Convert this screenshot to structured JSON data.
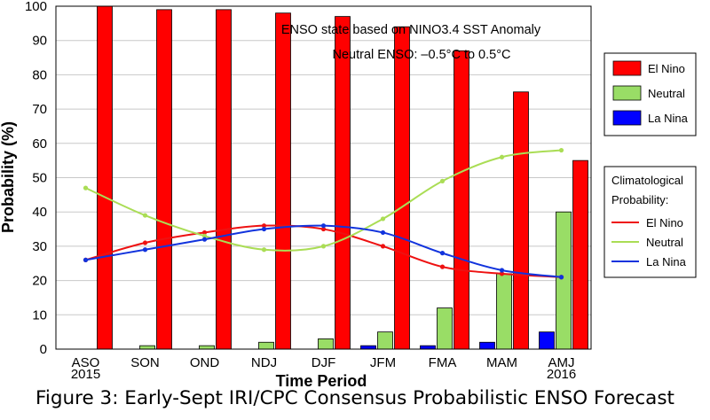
{
  "caption": "Figure 3: Early-Sept IRI/CPC Consensus Probabilistic ENSO Forecast",
  "chart_data": {
    "type": "bar",
    "categories": [
      "ASO",
      "SON",
      "OND",
      "NDJ",
      "DJF",
      "JFM",
      "FMA",
      "MAM",
      "AMJ"
    ],
    "year_labels": [
      {
        "category": "ASO",
        "text": "2015"
      },
      {
        "category": "AMJ",
        "text": "2016"
      }
    ],
    "xlabel": "Time Period",
    "ylabel": "Probability (%)",
    "ylim": [
      0,
      100
    ],
    "yticks": [
      0,
      10,
      20,
      30,
      40,
      50,
      60,
      70,
      80,
      90,
      100
    ],
    "grid": true,
    "annotation": [
      "ENSO state based on NINO3.4 SST Anomaly",
      "Neutral ENSO: –0.5°C to 0.5°C"
    ],
    "series": [
      {
        "name": "El Nino",
        "color": "#ff0000",
        "values": [
          100,
          99,
          99,
          98,
          97,
          94,
          87,
          75,
          55
        ]
      },
      {
        "name": "Neutral",
        "color": "#99dd66",
        "values": [
          0,
          1,
          1,
          2,
          3,
          5,
          12,
          22,
          40
        ]
      },
      {
        "name": "La Nina",
        "color": "#0000ff",
        "values": [
          0,
          0,
          0,
          0,
          0,
          1,
          1,
          2,
          5
        ]
      }
    ],
    "climatology_title": [
      "Climatological",
      "Probability:"
    ],
    "climatology": [
      {
        "name": "El Nino",
        "color": "#ee1111",
        "values": [
          26,
          31,
          34,
          36,
          35,
          30,
          24,
          22,
          21
        ]
      },
      {
        "name": "Neutral",
        "color": "#aadd55",
        "values": [
          47,
          39,
          33,
          29,
          30,
          38,
          49,
          56,
          58
        ]
      },
      {
        "name": "La Nina",
        "color": "#1133dd",
        "values": [
          26,
          29,
          32,
          35,
          36,
          34,
          28,
          23,
          21
        ]
      }
    ],
    "legend_position": "right"
  }
}
